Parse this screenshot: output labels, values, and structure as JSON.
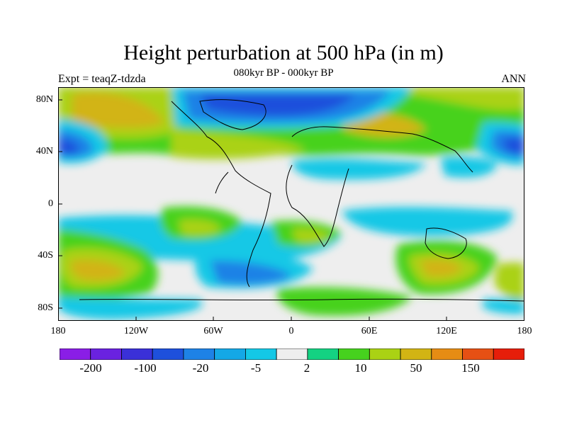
{
  "title": "Height perturbation at 500 hPa (in m)",
  "left_string": "Expt = teaqZ-tdzda",
  "center_string": "080kyr BP - 000kyr BP",
  "right_string": "ANN",
  "map": {
    "projection": "cylindrical equidistant",
    "lat_range": [
      -90,
      90
    ],
    "lon_range": [
      -180,
      180
    ],
    "lat_ticks": [
      "80N",
      "40N",
      "0",
      "40S",
      "80S"
    ],
    "lon_ticks": [
      "180",
      "120W",
      "60W",
      "0",
      "60E",
      "120E",
      "180"
    ]
  },
  "colorbar": {
    "colors": [
      "#8a1ee6",
      "#6a22e0",
      "#3a30d8",
      "#1e50dc",
      "#1e82e6",
      "#14a8e6",
      "#14c8e6",
      "#eeeeee",
      "#14d282",
      "#46d21e",
      "#aad214",
      "#d2b414",
      "#e68c14",
      "#e65014",
      "#e61e0a"
    ],
    "labels": [
      "-200",
      "-100",
      "-20",
      "-5",
      "2",
      "10",
      "50",
      "150"
    ]
  }
}
